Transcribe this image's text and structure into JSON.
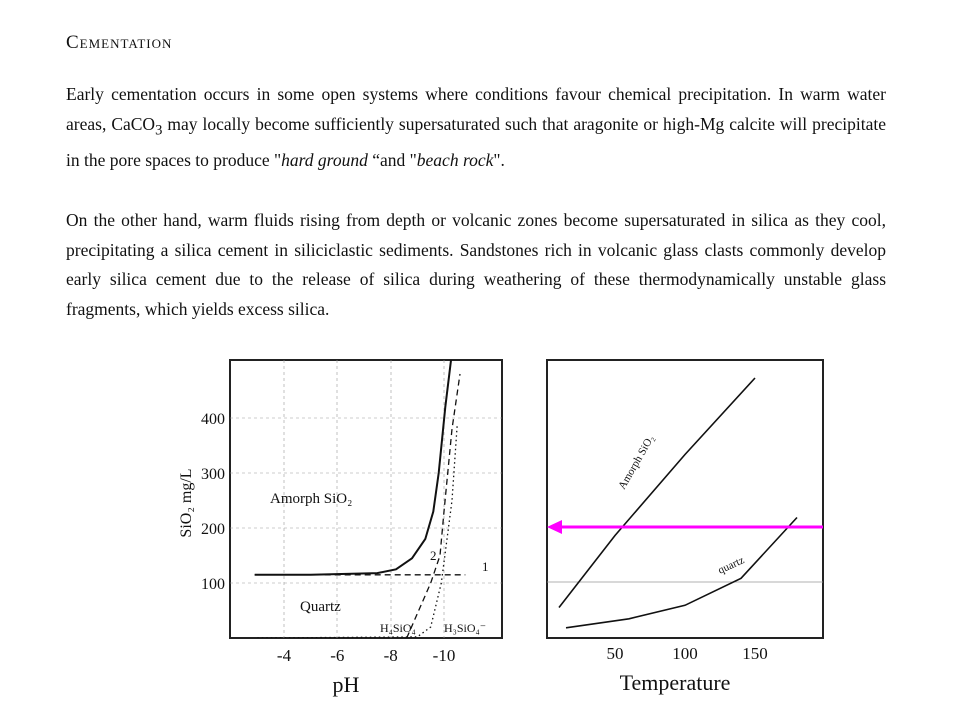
{
  "heading": "Cementation",
  "paragraph1": {
    "before_sub": "Early cementation occurs in some open systems where conditions favour chemical precipitation.  In warm water areas, CaCO",
    "sub": "3",
    "after_sub": " may locally become sufficiently supersaturated such that aragonite or high-Mg calcite will precipitate in the pore spaces to produce \"",
    "italic1": "hard ground",
    "mid": " “and \"",
    "italic2": "beach rock",
    "end": "\"."
  },
  "paragraph2": "On the other hand, warm fluids rising from depth or volcanic zones become supersaturated in silica as they cool, precipitating a silica cement in siliciclastic sediments.  Sandstones rich in volcanic glass clasts commonly develop early silica cement due to the release of silica during weathering of these thermodynamically unstable glass fragments, which yields excess silica.",
  "chart_data": [
    {
      "type": "line",
      "xlabel": "pH",
      "ylabel": "SiO₂ mg/L",
      "xticks": [
        "-4",
        "-6",
        "-8",
        "-10"
      ],
      "yticks": [
        100,
        200,
        300,
        400
      ],
      "ylim": [
        0,
        500
      ],
      "region_labels": [
        "Amorph SiO₂",
        "Quartz"
      ],
      "species_labels": [
        "H₄SiO₄",
        "H₃SiO₄⁻"
      ],
      "curve_labels": [
        "1",
        "2"
      ],
      "series": [
        {
          "style": "solid",
          "x": [
            -2.9,
            -5,
            -7.5,
            -8.2,
            -8.8,
            -9.3,
            -9.6,
            -9.8,
            -10.05,
            -10.3
          ],
          "y": [
            115,
            115,
            118,
            125,
            145,
            180,
            230,
            300,
            420,
            520
          ]
        },
        {
          "style": "dashed",
          "x": [
            -8.6,
            -9.5,
            -9.85,
            -10.0,
            -10.3,
            -10.6
          ],
          "y": [
            0,
            100,
            150,
            230,
            380,
            480
          ]
        },
        {
          "style": "dashed",
          "x": [
            -2.9,
            -10.8
          ],
          "y": [
            115,
            115
          ]
        },
        {
          "style": "dotted",
          "x": [
            -3.0,
            -9.0,
            -9.5,
            -9.9,
            -10.3,
            -10.5
          ],
          "y": [
            0,
            2,
            20,
            100,
            250,
            390
          ]
        }
      ]
    },
    {
      "type": "line",
      "xlabel": "Temperature",
      "ylabel": "",
      "xticks": [
        50,
        100,
        150
      ],
      "series": [
        {
          "name": "Amorph SiO₂",
          "x": [
            10,
            50,
            100,
            150
          ],
          "y": [
            50,
            210,
            390,
            560
          ]
        },
        {
          "name": "quartz",
          "x": [
            15,
            60,
            100,
            140,
            180
          ],
          "y": [
            5,
            25,
            55,
            115,
            250
          ]
        }
      ],
      "annotations": [
        "horizontal magenta arrow pointing left at intersection with amorphous silica curve"
      ],
      "colors": {
        "arrow": "#ff00ff"
      }
    }
  ]
}
